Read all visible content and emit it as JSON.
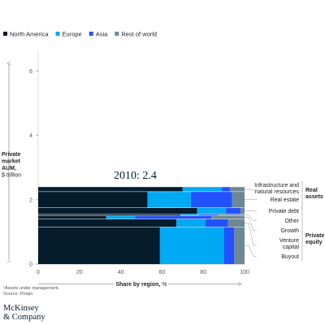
{
  "colors": {
    "North America": "#051c2c",
    "Europe": "#00a9f4",
    "Asia": "#2251ff",
    "Rest of world": "#6e8794",
    "axis": "#b3b3b3",
    "text": "#222222"
  },
  "chart_data": {
    "type": "bar",
    "legend": [
      "North America",
      "Europe",
      "Asia",
      "Rest of world"
    ],
    "legend_position": "top-left",
    "x_axis": {
      "label": "Share by region,",
      "unit": "%",
      "range": [
        0,
        100
      ],
      "ticks": [
        "0",
        "20",
        "40",
        "60",
        "80",
        "100"
      ]
    },
    "y_axis": {
      "label": [
        "Private",
        "market",
        "AUM,"
      ],
      "unit": "$ trillion",
      "range": [
        0,
        7.3
      ],
      "ticks": [
        "0",
        "2",
        "4",
        "6"
      ]
    },
    "annotation": "2010: 2.4",
    "categories": [
      {
        "name": "Infrastructure and natural resources",
        "label_lines": [
          "Infrastructure and",
          "natural resources"
        ],
        "y_range": [
          2.25,
          2.4
        ],
        "shares": [
          70,
          19,
          4,
          7
        ]
      },
      {
        "name": "Real estate",
        "label_lines": [
          "Real estate"
        ],
        "y_range": [
          1.75,
          2.25
        ],
        "shares": [
          53,
          21,
          20,
          6
        ]
      },
      {
        "name": "Private debt",
        "label_lines": [
          "Private debt"
        ],
        "y_range": [
          1.55,
          1.75
        ],
        "shares": [
          77,
          14,
          7,
          2
        ]
      },
      {
        "name": "Other",
        "label_lines": [
          "Other"
        ],
        "y_range": [
          1.5,
          1.55
        ],
        "shares": [
          69,
          9,
          9,
          13
        ]
      },
      {
        "name": "Growth",
        "label_lines": [
          "Growth"
        ],
        "y_range": [
          1.4,
          1.5
        ],
        "shares": [
          33,
          14,
          37,
          16
        ]
      },
      {
        "name": "Venture capital",
        "label_lines": [
          "Venture",
          "capital"
        ],
        "y_range": [
          1.15,
          1.4
        ],
        "shares": [
          67,
          14,
          11,
          8
        ]
      },
      {
        "name": "Buyout",
        "label_lines": [
          "Buyout"
        ],
        "y_range": [
          0,
          1.15
        ],
        "shares": [
          59,
          31,
          5,
          5
        ]
      }
    ],
    "groups": [
      {
        "name": "Real assets",
        "label_lines": [
          "Real",
          "assets"
        ],
        "categories": [
          "Infrastructure and natural resources",
          "Real estate"
        ]
      },
      {
        "name": "Private equity",
        "label_lines": [
          "Private",
          "equity"
        ],
        "categories": [
          "Private debt",
          "Other",
          "Growth",
          "Venture capital",
          "Buyout"
        ]
      }
    ]
  },
  "footnote_lines": [
    "¹Assets under management.",
    "Source: Preqin"
  ],
  "logo_lines": [
    "McKinsey",
    "& Company"
  ]
}
